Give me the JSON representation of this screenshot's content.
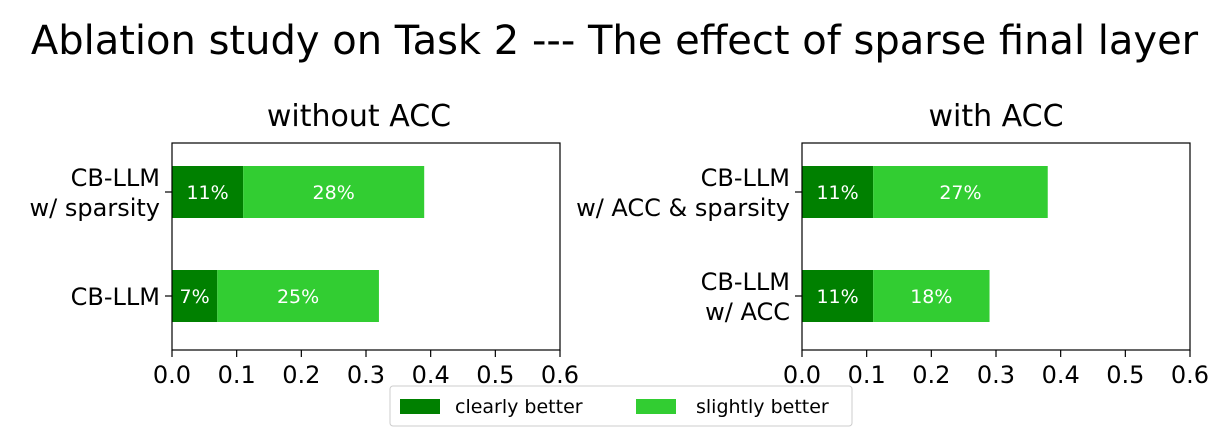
{
  "title": "Ablation study on Task 2 --- The effect of sparse final layer",
  "colors": {
    "clearly": "#008000",
    "slightly": "#32CD32",
    "label": "#ffffff"
  },
  "legend": {
    "placement": "bottom-center",
    "items": [
      "clearly better",
      "slightly better"
    ]
  },
  "chart_data": [
    {
      "type": "bar",
      "orientation": "horizontal",
      "stacked": true,
      "title": "without ACC",
      "categories": [
        [
          "CB-LLM",
          "w/ sparsity"
        ],
        [
          "CB-LLM"
        ]
      ],
      "series": [
        {
          "name": "clearly better",
          "values": [
            0.11,
            0.07
          ],
          "labels": [
            "11%",
            "7%"
          ]
        },
        {
          "name": "slightly better",
          "values": [
            0.28,
            0.25
          ],
          "labels": [
            "28%",
            "25%"
          ]
        }
      ],
      "xlim": [
        0,
        0.6
      ],
      "xticks": [
        "0.0",
        "0.1",
        "0.2",
        "0.3",
        "0.4",
        "0.5",
        "0.6"
      ],
      "grid": false
    },
    {
      "type": "bar",
      "orientation": "horizontal",
      "stacked": true,
      "title": "with ACC",
      "categories": [
        [
          "CB-LLM",
          "w/ ACC & sparsity"
        ],
        [
          "CB-LLM",
          "w/ ACC"
        ]
      ],
      "series": [
        {
          "name": "clearly better",
          "values": [
            0.11,
            0.11
          ],
          "labels": [
            "11%",
            "11%"
          ]
        },
        {
          "name": "slightly better",
          "values": [
            0.27,
            0.18
          ],
          "labels": [
            "27%",
            "18%"
          ]
        }
      ],
      "xlim": [
        0,
        0.6
      ],
      "xticks": [
        "0.0",
        "0.1",
        "0.2",
        "0.3",
        "0.4",
        "0.5",
        "0.6"
      ],
      "grid": false
    }
  ]
}
